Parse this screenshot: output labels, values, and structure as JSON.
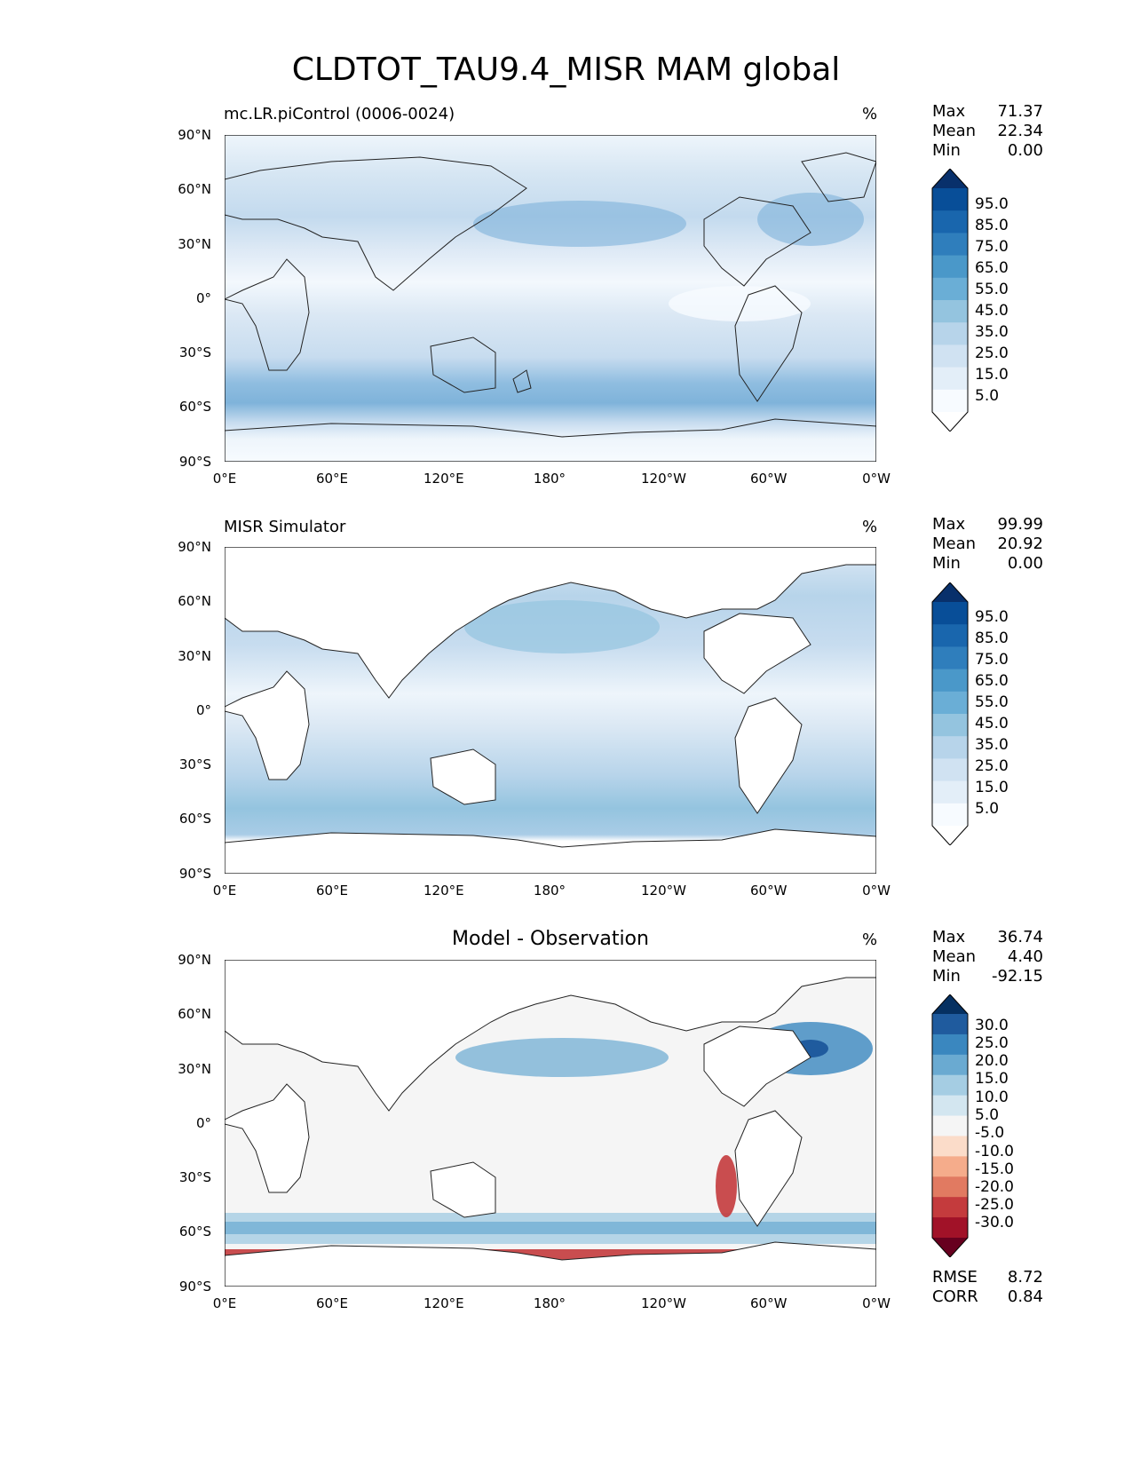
{
  "figure": {
    "title": "CLDTOT_TAU9.4_MISR MAM global"
  },
  "axes": {
    "lat_ticks": [
      "90°N",
      "60°N",
      "30°N",
      "0°",
      "30°S",
      "60°S",
      "90°S"
    ],
    "lon_ticks": [
      "0°E",
      "60°E",
      "120°E",
      "180°",
      "120°W",
      "60°W",
      "0°W"
    ]
  },
  "panels": [
    {
      "title": "mc.LR.piControl (0006-0024)",
      "unit": "%",
      "stats": {
        "max_label": "Max",
        "max": "71.37",
        "mean_label": "Mean",
        "mean": "22.34",
        "min_label": "Min",
        "min": "0.00"
      },
      "colorbar": {
        "labels": [
          "95.0",
          "85.0",
          "75.0",
          "65.0",
          "55.0",
          "45.0",
          "35.0",
          "25.0",
          "15.0",
          "5.0"
        ],
        "colors": [
          "#08306b",
          "#084e98",
          "#1966ad",
          "#2f7ebc",
          "#4a98c9",
          "#6aaed6",
          "#94c4df",
          "#b7d4ea",
          "#d0e2f2",
          "#e3eef8",
          "#f7fbff",
          "#ffffff"
        ]
      }
    },
    {
      "title": "MISR Simulator",
      "unit": "%",
      "stats": {
        "max_label": "Max",
        "max": "99.99",
        "mean_label": "Mean",
        "mean": "20.92",
        "min_label": "Min",
        "min": "0.00"
      },
      "colorbar": {
        "labels": [
          "95.0",
          "85.0",
          "75.0",
          "65.0",
          "55.0",
          "45.0",
          "35.0",
          "25.0",
          "15.0",
          "5.0"
        ],
        "colors": [
          "#08306b",
          "#084e98",
          "#1966ad",
          "#2f7ebc",
          "#4a98c9",
          "#6aaed6",
          "#94c4df",
          "#b7d4ea",
          "#d0e2f2",
          "#e3eef8",
          "#f7fbff",
          "#ffffff"
        ]
      }
    },
    {
      "title": "Model - Observation",
      "unit": "%",
      "stats": {
        "max_label": "Max",
        "max": "36.74",
        "mean_label": "Mean",
        "mean": "4.40",
        "min_label": "Min",
        "min": "-92.15"
      },
      "metrics": {
        "rmse_label": "RMSE",
        "rmse": "8.72",
        "corr_label": "CORR",
        "corr": "0.84"
      },
      "colorbar": {
        "labels": [
          "30.0",
          "25.0",
          "20.0",
          "15.0",
          "10.0",
          "5.0",
          "-5.0",
          "-10.0",
          "-15.0",
          "-20.0",
          "-25.0",
          "-30.0"
        ],
        "colors": [
          "#053061",
          "#1f5b9e",
          "#3a87bf",
          "#6aaad1",
          "#a5cde3",
          "#d3e6f0",
          "#f5f5f5",
          "#fbdcc9",
          "#f5ac8b",
          "#e17a61",
          "#c43b3d",
          "#a11228",
          "#67001f"
        ]
      }
    }
  ]
}
